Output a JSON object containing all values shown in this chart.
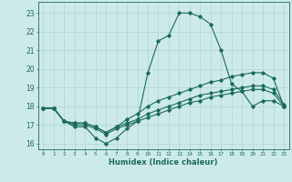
{
  "xlabel": "Humidex (Indice chaleur)",
  "ylabel": "",
  "background_color": "#cdeaea",
  "grid_color": "#aed4d4",
  "line_color": "#1a6b5a",
  "xlim": [
    -0.5,
    23.5
  ],
  "ylim": [
    15.7,
    23.6
  ],
  "yticks": [
    16,
    17,
    18,
    19,
    20,
    21,
    22,
    23
  ],
  "xticks": [
    0,
    1,
    2,
    3,
    4,
    5,
    6,
    7,
    8,
    9,
    10,
    11,
    12,
    13,
    14,
    15,
    16,
    17,
    18,
    19,
    20,
    21,
    22,
    23
  ],
  "series": [
    {
      "x": [
        0,
        1,
        2,
        3,
        4,
        5,
        6,
        7,
        8,
        9,
        10,
        11,
        12,
        13,
        14,
        15,
        16,
        17,
        18,
        19,
        20,
        21,
        22,
        23
      ],
      "y": [
        17.9,
        17.9,
        17.2,
        16.9,
        16.9,
        16.3,
        16.0,
        16.3,
        16.8,
        17.2,
        19.8,
        21.5,
        21.8,
        23.0,
        23.0,
        22.8,
        22.4,
        21.0,
        19.2,
        18.8,
        18.0,
        18.3,
        18.3,
        18.0
      ]
    },
    {
      "x": [
        0,
        1,
        2,
        3,
        4,
        5,
        6,
        7,
        8,
        9,
        10,
        11,
        12,
        13,
        14,
        15,
        16,
        17,
        18,
        19,
        20,
        21,
        22,
        23
      ],
      "y": [
        17.9,
        17.9,
        17.2,
        17.1,
        17.1,
        16.9,
        16.6,
        16.9,
        17.3,
        17.6,
        18.0,
        18.3,
        18.5,
        18.7,
        18.9,
        19.1,
        19.3,
        19.4,
        19.6,
        19.7,
        19.8,
        19.8,
        19.5,
        18.0
      ]
    },
    {
      "x": [
        0,
        1,
        2,
        3,
        4,
        5,
        6,
        7,
        8,
        9,
        10,
        11,
        12,
        13,
        14,
        15,
        16,
        17,
        18,
        19,
        20,
        21,
        22,
        23
      ],
      "y": [
        17.9,
        17.9,
        17.2,
        17.1,
        17.1,
        16.9,
        16.6,
        16.9,
        17.1,
        17.3,
        17.6,
        17.8,
        18.0,
        18.2,
        18.4,
        18.6,
        18.7,
        18.8,
        18.9,
        19.0,
        19.1,
        19.1,
        18.9,
        18.1
      ]
    },
    {
      "x": [
        0,
        1,
        2,
        3,
        4,
        5,
        6,
        7,
        8,
        9,
        10,
        11,
        12,
        13,
        14,
        15,
        16,
        17,
        18,
        19,
        20,
        21,
        22,
        23
      ],
      "y": [
        17.9,
        17.9,
        17.2,
        17.0,
        17.0,
        16.8,
        16.5,
        16.8,
        17.0,
        17.2,
        17.4,
        17.6,
        17.8,
        18.0,
        18.2,
        18.3,
        18.5,
        18.6,
        18.7,
        18.8,
        18.9,
        18.9,
        18.7,
        18.0
      ]
    }
  ]
}
